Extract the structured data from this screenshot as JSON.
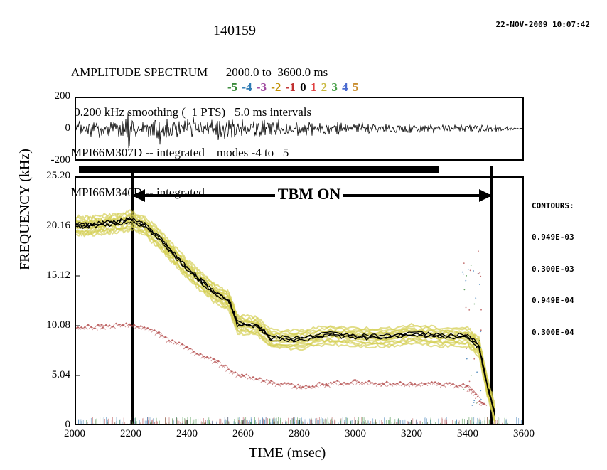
{
  "timestamp": "22-NOV-2009 10:07:42",
  "shot": "140159",
  "header": {
    "line1": "AMPLITUDE SPECTRUM      2000.0 to  3600.0 ms",
    "line2": " 0.200 kHz smoothing (  1 PTS)   5.0 ms intervals",
    "line3": "MPI66M307D -- integrated    modes -4 to   5",
    "line4": "MPI66M340D -- integrated"
  },
  "mode_legend": [
    {
      "label": "-5",
      "color": "#3a8a3a"
    },
    {
      "label": "-4",
      "color": "#2e7bb5"
    },
    {
      "label": "-3",
      "color": "#a04aa0"
    },
    {
      "label": "-2",
      "color": "#c08f00"
    },
    {
      "label": "-1",
      "color": "#c03030"
    },
    {
      "label": "0",
      "color": "#000000"
    },
    {
      "label": "1",
      "color": "#e04040"
    },
    {
      "label": "2",
      "color": "#c9b83f"
    },
    {
      "label": "3",
      "color": "#4aa04a"
    },
    {
      "label": "4",
      "color": "#4a6ad0"
    },
    {
      "label": "5",
      "color": "#c98d2e"
    }
  ],
  "top_panel": {
    "ylim": [
      -200,
      200
    ],
    "yticks": [
      -200,
      0,
      200
    ],
    "signal_color": "#000000",
    "background": "#ffffff"
  },
  "bottom_panel": {
    "ylabel": "FREQUENCY (kHz)",
    "xlabel": "TIME (msec)",
    "xlim": [
      2000,
      3600
    ],
    "ylim": [
      0,
      25.2
    ],
    "xticks": [
      2000,
      2200,
      2400,
      2600,
      2800,
      3000,
      3200,
      3400,
      3600
    ],
    "yticks": [
      0,
      5.04,
      10.08,
      15.12,
      20.16,
      25.2
    ],
    "background": "#ffffff",
    "tbm_label": "TBM ON",
    "tbm_bar_color": "#000000",
    "tbm_on_range": [
      2200,
      3480
    ],
    "tbm_top_bar_range": [
      2015,
      3300
    ],
    "trace_main": {
      "color_contour": "#000000",
      "fill_band_color": "#d2cd4c",
      "points": [
        [
          2000,
          20.3
        ],
        [
          2050,
          20.2
        ],
        [
          2100,
          20.4
        ],
        [
          2150,
          20.5
        ],
        [
          2200,
          20.8
        ],
        [
          2250,
          20.2
        ],
        [
          2300,
          19.0
        ],
        [
          2350,
          17.4
        ],
        [
          2400,
          15.9
        ],
        [
          2450,
          14.6
        ],
        [
          2500,
          13.4
        ],
        [
          2550,
          12.6
        ],
        [
          2580,
          10.3
        ],
        [
          2650,
          10.1
        ],
        [
          2700,
          8.8
        ],
        [
          2800,
          8.7
        ],
        [
          2900,
          9.2
        ],
        [
          3000,
          9.0
        ],
        [
          3100,
          8.9
        ],
        [
          3200,
          9.3
        ],
        [
          3300,
          9.0
        ],
        [
          3400,
          9.0
        ],
        [
          3440,
          8.0
        ],
        [
          3470,
          4.0
        ],
        [
          3500,
          0.8
        ]
      ]
    },
    "trace_secondary": {
      "color": "#b34a4a",
      "points": [
        [
          2000,
          10.1
        ],
        [
          2100,
          10.0
        ],
        [
          2200,
          10.3
        ],
        [
          2300,
          9.3
        ],
        [
          2400,
          7.8
        ],
        [
          2500,
          6.5
        ],
        [
          2600,
          5.0
        ],
        [
          2700,
          4.4
        ],
        [
          2800,
          4.0
        ],
        [
          2900,
          4.2
        ],
        [
          3000,
          4.5
        ],
        [
          3100,
          4.2
        ],
        [
          3200,
          4.3
        ],
        [
          3300,
          4.2
        ],
        [
          3400,
          4.0
        ],
        [
          3460,
          2.0
        ]
      ]
    },
    "baseline_noise_colors": [
      "#b34a4a",
      "#3a7bb5",
      "#3a8a3a",
      "#a04aa0",
      "#c9b83f",
      "#000000"
    ]
  },
  "contours": {
    "title": "CONTOURS:",
    "levels": [
      "0.949E-03",
      "0.300E-03",
      "0.949E-04",
      "0.300E-04"
    ]
  },
  "styling": {
    "axis_color": "#000000",
    "axis_width": 2,
    "font_family": "Times New Roman",
    "title_fontsize": 20,
    "header_fontsize": 17,
    "tick_fontsize": 15,
    "label_fontsize": 20,
    "contour_fontsize": 11,
    "timestamp_fontsize": 11
  }
}
